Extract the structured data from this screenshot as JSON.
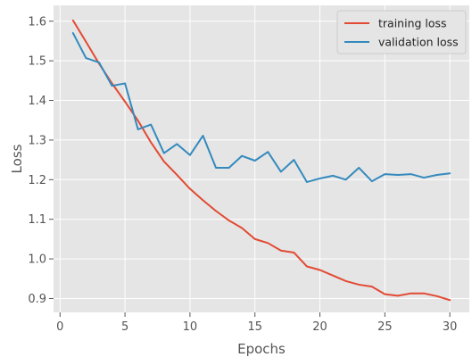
{
  "chart_data": {
    "type": "line",
    "title": "",
    "xlabel": "Epochs",
    "ylabel": "Loss",
    "xlim": [
      -0.5,
      31.5
    ],
    "ylim": [
      0.865,
      1.64
    ],
    "xticks": [
      0,
      5,
      10,
      15,
      20,
      25,
      30
    ],
    "yticks": [
      0.9,
      1.0,
      1.1,
      1.2,
      1.3,
      1.4,
      1.5,
      1.6
    ],
    "grid": true,
    "style": "ggplot",
    "legend": "top-right",
    "x": [
      1,
      2,
      3,
      4,
      5,
      6,
      7,
      8,
      9,
      10,
      11,
      12,
      13,
      14,
      15,
      16,
      17,
      18,
      19,
      20,
      21,
      22,
      23,
      24,
      25,
      26,
      27,
      28,
      29,
      30
    ],
    "series": [
      {
        "name": "training loss",
        "color": "#E24A33",
        "values": [
          1.602,
          1.548,
          1.493,
          1.443,
          1.397,
          1.349,
          1.294,
          1.246,
          1.212,
          1.177,
          1.148,
          1.121,
          1.097,
          1.078,
          1.05,
          1.04,
          1.021,
          1.016,
          0.981,
          0.972,
          0.958,
          0.944,
          0.935,
          0.93,
          0.911,
          0.907,
          0.913,
          0.913,
          0.906,
          0.896
        ]
      },
      {
        "name": "validation loss",
        "color": "#348ABD",
        "values": [
          1.57,
          1.507,
          1.496,
          1.437,
          1.443,
          1.327,
          1.339,
          1.267,
          1.29,
          1.262,
          1.311,
          1.23,
          1.23,
          1.26,
          1.248,
          1.27,
          1.22,
          1.25,
          1.194,
          1.203,
          1.21,
          1.2,
          1.23,
          1.196,
          1.214,
          1.212,
          1.214,
          1.205,
          1.212,
          1.216
        ]
      }
    ]
  }
}
